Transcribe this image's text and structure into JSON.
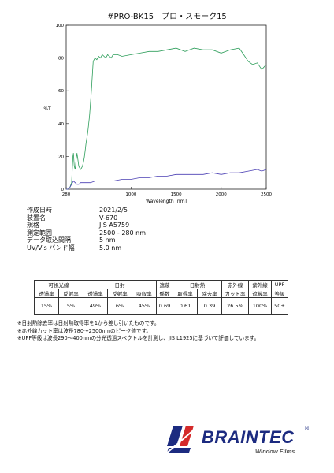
{
  "title": "#PRO-BK15　プロ・スモーク15",
  "chart_data": {
    "type": "line",
    "xlabel": "Wavelength [nm]",
    "ylabel": "%T",
    "xlim": [
      280,
      2500
    ],
    "ylim": [
      0,
      100
    ],
    "xticks": [
      280,
      1000,
      1500,
      2000,
      2500
    ],
    "yticks": [
      0,
      20,
      40,
      60,
      80,
      100
    ],
    "grid": false,
    "series": [
      {
        "color": "#2e9e5b",
        "x": [
          280,
          300,
          320,
          340,
          355,
          360,
          370,
          380,
          390,
          400,
          410,
          420,
          430,
          440,
          450,
          460,
          470,
          480,
          490,
          500,
          520,
          540,
          560,
          580,
          600,
          620,
          640,
          660,
          680,
          700,
          720,
          740,
          760,
          780,
          800,
          850,
          900,
          1000,
          1100,
          1200,
          1300,
          1400,
          1500,
          1600,
          1700,
          1800,
          1900,
          2000,
          2100,
          2200,
          2250,
          2300,
          2350,
          2400,
          2450,
          2500
        ],
        "y": [
          0,
          0,
          1,
          4,
          20,
          22,
          14,
          12,
          18,
          22,
          18,
          14,
          13,
          12,
          13,
          14,
          16,
          19,
          23,
          28,
          35,
          45,
          60,
          78,
          80,
          79,
          81,
          80,
          82,
          81,
          80,
          82,
          81,
          80,
          82,
          82,
          81,
          82,
          83,
          84,
          84,
          85,
          86,
          84,
          86,
          85,
          85,
          83,
          85,
          86,
          82,
          78,
          76,
          77,
          73,
          76
        ]
      },
      {
        "color": "#4a3fb3",
        "x": [
          280,
          300,
          320,
          340,
          360,
          380,
          400,
          420,
          440,
          460,
          480,
          500,
          550,
          600,
          650,
          700,
          750,
          800,
          900,
          1000,
          1100,
          1200,
          1300,
          1400,
          1500,
          1600,
          1700,
          1800,
          1900,
          2000,
          2100,
          2200,
          2300,
          2400,
          2450,
          2500
        ],
        "y": [
          0,
          0,
          1,
          3,
          5,
          4,
          3,
          3,
          4,
          4,
          4,
          4,
          4,
          5,
          5,
          5,
          5,
          5,
          6,
          6,
          7,
          7,
          8,
          8,
          9,
          9,
          9,
          9,
          10,
          9,
          10,
          10,
          11,
          12,
          11,
          12
        ]
      }
    ]
  },
  "meta": [
    {
      "label": "作成日時",
      "value": "2021/2/5"
    },
    {
      "label": "装置名",
      "value": "V-670"
    },
    {
      "label": "規格",
      "value": "JIS A5759"
    },
    {
      "label": "測定範囲",
      "value": "2500 - 280 nm"
    },
    {
      "label": "データ取込間隔",
      "value": "5 nm"
    },
    {
      "label": "UV/Vis バンド幅",
      "value": "5.0 nm"
    }
  ],
  "table": {
    "groups": [
      "可視光線",
      "日射",
      "遮蔽",
      "日射熱",
      "赤外線",
      "紫外線",
      "UPF"
    ],
    "headers": [
      "透過率",
      "反射率",
      "透過率",
      "反射率",
      "吸収率",
      "係数",
      "取得率",
      "除去率",
      "カット率",
      "遮蔽率",
      "等級"
    ],
    "values": [
      "15%",
      "5%",
      "49%",
      "6%",
      "45%",
      "0.69",
      "0.61",
      "0.39",
      "26.5%",
      "100%",
      "50+"
    ]
  },
  "notes": [
    "※日射熱除去率は日射熱取得率を1から差し引いたものです。",
    "※赤外線カット率は波長780〜2500nmのピーク値です。",
    "※UPF等級は波長290〜400nmの分光透過スペクトルを計測し、JIS L1925に基づいて評価しています。"
  ],
  "logo": {
    "brand": "BRAINTEC",
    "registered": "®",
    "tagline": "Window Films",
    "colors": {
      "primary": "#1c2b80",
      "accent": "#d42a2a"
    }
  }
}
